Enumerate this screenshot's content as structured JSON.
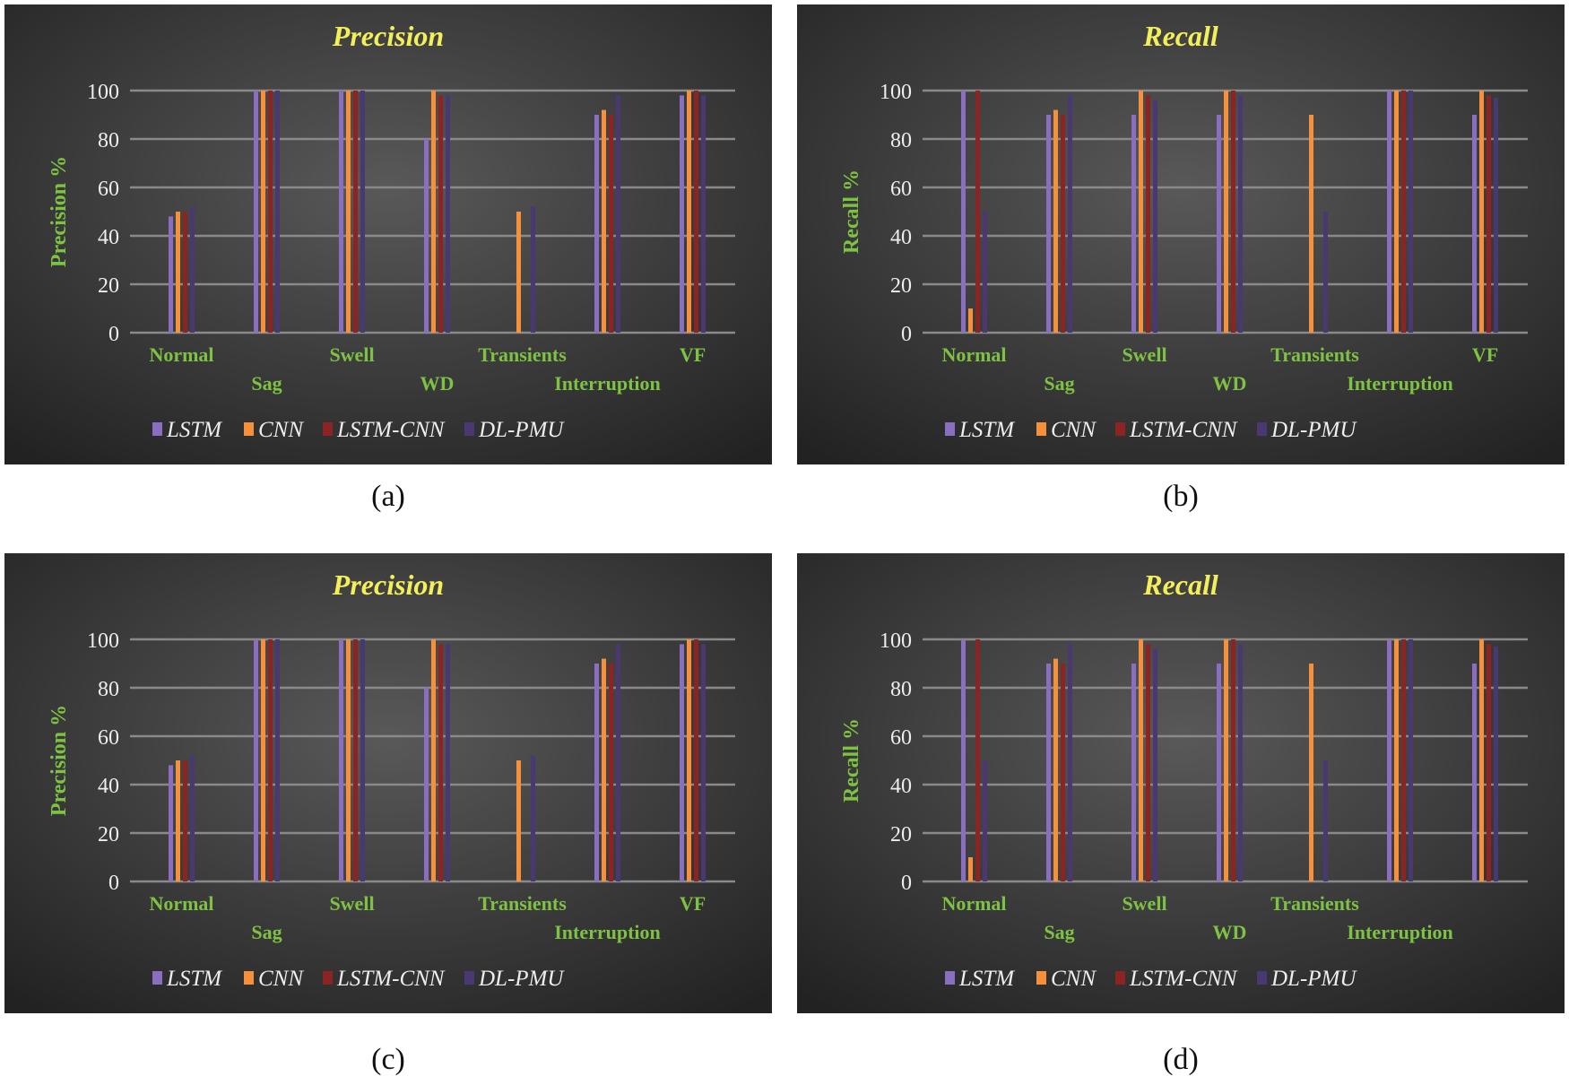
{
  "colors": {
    "LSTM": "#8a6fc0",
    "CNN": "#f7903a",
    "LSTM-CNN": "#8c2424",
    "DL-PMU": "#4a3872",
    "title": "#f3ef5a",
    "axis_label": "#7dc242",
    "tick": "#eeeeee",
    "grid": "#8a8a8a"
  },
  "chart_data": [
    {
      "type": "bar",
      "caption": "(a)",
      "title": "Precision",
      "ylabel": "Precision %",
      "xlabel": "",
      "ylim": [
        0,
        100
      ],
      "yticks": [
        0,
        20,
        40,
        60,
        80,
        100
      ],
      "grid": true,
      "legend": "bottom",
      "categories": [
        "Normal",
        "Sag",
        "Swell",
        "WD",
        "Transients",
        "Interruption",
        "VF"
      ],
      "series": [
        {
          "name": "LSTM",
          "values": [
            48,
            100,
            100,
            80,
            0,
            90,
            98
          ]
        },
        {
          "name": "CNN",
          "values": [
            50,
            100,
            100,
            100,
            50,
            92,
            100
          ]
        },
        {
          "name": "LSTM-CNN",
          "values": [
            50,
            100,
            100,
            98,
            0,
            90,
            100
          ]
        },
        {
          "name": "DL-PMU",
          "values": [
            52,
            100,
            100,
            98,
            52,
            98,
            98
          ]
        }
      ]
    },
    {
      "type": "bar",
      "caption": "(b)",
      "title": "Recall",
      "ylabel": "Recall %",
      "xlabel": "",
      "ylim": [
        0,
        100
      ],
      "yticks": [
        0,
        20,
        40,
        60,
        80,
        100
      ],
      "grid": true,
      "legend": "bottom",
      "categories": [
        "Normal",
        "Sag",
        "Swell",
        "WD",
        "Transients",
        "Interruption",
        "VF"
      ],
      "series": [
        {
          "name": "LSTM",
          "values": [
            100,
            90,
            90,
            90,
            0,
            100,
            90
          ]
        },
        {
          "name": "CNN",
          "values": [
            10,
            92,
            100,
            100,
            90,
            100,
            100
          ]
        },
        {
          "name": "LSTM-CNN",
          "values": [
            100,
            90,
            98,
            100,
            0,
            100,
            98
          ]
        },
        {
          "name": "DL-PMU",
          "values": [
            50,
            98,
            96,
            98,
            50,
            100,
            97
          ]
        }
      ]
    },
    {
      "type": "bar",
      "caption": "(c)",
      "title": "Precision",
      "ylabel": "Precision %",
      "xlabel": "",
      "ylim": [
        0,
        100
      ],
      "yticks": [
        0,
        20,
        40,
        60,
        80,
        100
      ],
      "grid": true,
      "legend": "bottom",
      "categories": [
        "Normal",
        "Sag",
        "Swell",
        "",
        "Transients",
        "Interruption",
        "VF"
      ],
      "series": [
        {
          "name": "LSTM",
          "values": [
            48,
            100,
            100,
            80,
            0,
            90,
            98
          ]
        },
        {
          "name": "CNN",
          "values": [
            50,
            100,
            100,
            100,
            50,
            92,
            100
          ]
        },
        {
          "name": "LSTM-CNN",
          "values": [
            50,
            100,
            100,
            98,
            0,
            90,
            100
          ]
        },
        {
          "name": "DL-PMU",
          "values": [
            52,
            100,
            100,
            98,
            52,
            98,
            98
          ]
        }
      ]
    },
    {
      "type": "bar",
      "caption": "(d)",
      "title": "Recall",
      "ylabel": "Recall %",
      "xlabel": "",
      "ylim": [
        0,
        100
      ],
      "yticks": [
        0,
        20,
        40,
        60,
        80,
        100
      ],
      "grid": true,
      "legend": "bottom",
      "categories": [
        "Normal",
        "Sag",
        "Swell",
        "WD",
        "Transients",
        "Interruption",
        ""
      ],
      "series": [
        {
          "name": "LSTM",
          "values": [
            100,
            90,
            90,
            90,
            0,
            100,
            90
          ]
        },
        {
          "name": "CNN",
          "values": [
            10,
            92,
            100,
            100,
            90,
            100,
            100
          ]
        },
        {
          "name": "LSTM-CNN",
          "values": [
            100,
            90,
            98,
            100,
            0,
            100,
            98
          ]
        },
        {
          "name": "DL-PMU",
          "values": [
            50,
            98,
            96,
            98,
            50,
            100,
            97
          ]
        }
      ]
    }
  ]
}
